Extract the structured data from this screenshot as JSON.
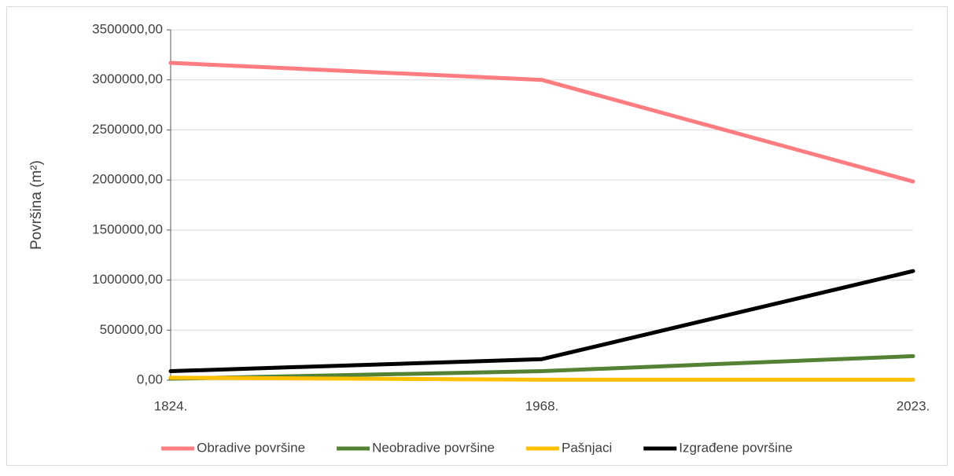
{
  "chart_data": {
    "type": "line",
    "y_label": "Površina (m²)",
    "categories": [
      "1824.",
      "1968.",
      "2023."
    ],
    "series": [
      {
        "name": "Obradive površine",
        "color": "#ff7c80",
        "values": [
          3170000,
          3000000,
          1985000
        ]
      },
      {
        "name": "Neobradive površine",
        "color": "#548235",
        "values": [
          15000,
          90000,
          240000
        ]
      },
      {
        "name": "Pašnjaci",
        "color": "#ffc000",
        "values": [
          25000,
          5000,
          5000
        ]
      },
      {
        "name": "Izgrađene površine",
        "color": "#000000",
        "values": [
          90000,
          210000,
          1090000
        ]
      }
    ],
    "ylim": [
      0,
      3500000
    ],
    "yticks": [
      {
        "value": 0,
        "label": "0,00"
      },
      {
        "value": 500000,
        "label": "500000,00"
      },
      {
        "value": 1000000,
        "label": "1000000,00"
      },
      {
        "value": 1500000,
        "label": "1500000,00"
      },
      {
        "value": 2000000,
        "label": "2000000,00"
      },
      {
        "value": 2500000,
        "label": "2500000,00"
      },
      {
        "value": 3000000,
        "label": "3000000,00"
      },
      {
        "value": 3500000,
        "label": "3500000,00"
      }
    ],
    "grid": true,
    "legend": "bottom"
  }
}
